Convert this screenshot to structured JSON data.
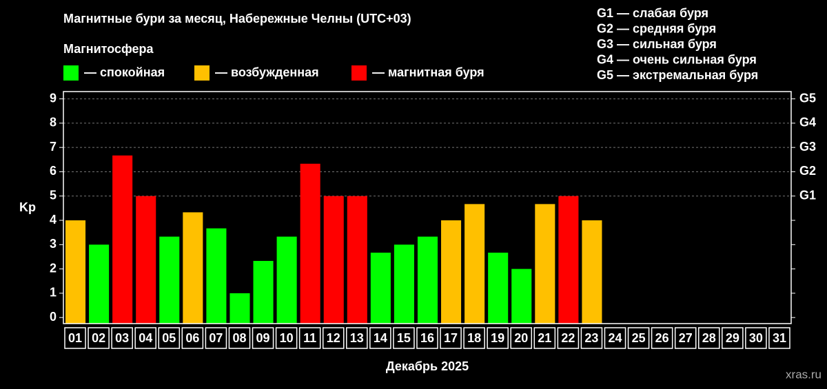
{
  "chart_data": {
    "type": "bar",
    "title": "Магнитные бури за месяц, Набережные Челны (UTC+03)",
    "legend_title": "Магнитосфера",
    "legend": [
      {
        "label": "— спокойная",
        "color": "#00ff00"
      },
      {
        "label": "— возбужденная",
        "color": "#ffc000"
      },
      {
        "label": "— магнитная буря",
        "color": "#ff0000"
      }
    ],
    "scale_notes": [
      "G1 — слабая буря",
      "G2 — средняя буря",
      "G3 — сильная буря",
      "G4 — очень сильная буря",
      "G5 — экстремальная буря"
    ],
    "ylabel": "Kp",
    "xlabel": "Декабрь 2025",
    "watermark": "xras.ru",
    "categories": [
      "01",
      "02",
      "03",
      "04",
      "05",
      "06",
      "07",
      "08",
      "09",
      "10",
      "11",
      "12",
      "13",
      "14",
      "15",
      "16",
      "17",
      "18",
      "19",
      "20",
      "21",
      "22",
      "23",
      "24",
      "25",
      "26",
      "27",
      "28",
      "29",
      "30",
      "31"
    ],
    "values": [
      4,
      3,
      6.67,
      5,
      3.33,
      4.33,
      3.67,
      1,
      2.33,
      3.33,
      6.33,
      5,
      5,
      2.67,
      3,
      3.33,
      4,
      4.67,
      2.67,
      2,
      4.67,
      5,
      4,
      null,
      null,
      null,
      null,
      null,
      null,
      null,
      null
    ],
    "colors": [
      "#ffc000",
      "#00ff00",
      "#ff0000",
      "#ff0000",
      "#00ff00",
      "#ffc000",
      "#00ff00",
      "#00ff00",
      "#00ff00",
      "#00ff00",
      "#ff0000",
      "#ff0000",
      "#ff0000",
      "#00ff00",
      "#00ff00",
      "#00ff00",
      "#ffc000",
      "#ffc000",
      "#00ff00",
      "#00ff00",
      "#ffc000",
      "#ff0000",
      "#ffc000",
      null,
      null,
      null,
      null,
      null,
      null,
      null,
      null
    ],
    "ylim": [
      -0.25,
      9.3
    ],
    "yticks": [
      0,
      1,
      2,
      3,
      4,
      5,
      6,
      7,
      8,
      9
    ],
    "y2lim": [
      -0.25,
      9.3
    ],
    "y2ticks": [
      {
        "value": 5,
        "label": "G1"
      },
      {
        "value": 6,
        "label": "G2"
      },
      {
        "value": 7,
        "label": "G3"
      },
      {
        "value": 8,
        "label": "G4"
      },
      {
        "value": 9,
        "label": "G5"
      }
    ],
    "grid": true
  }
}
